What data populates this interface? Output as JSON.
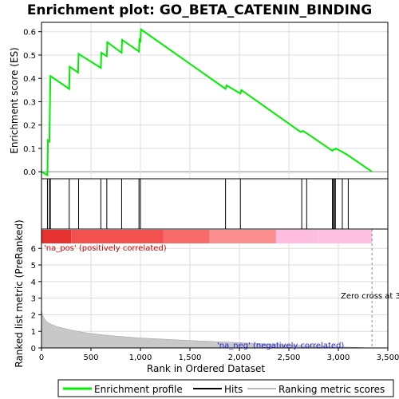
{
  "title": "Enrichment plot: GO_BETA_CATENIN_BINDING",
  "top_panel": {
    "ylabel": "Enrichment score (ES)",
    "yticks": [
      "0.0",
      "0.1",
      "0.2",
      "0.3",
      "0.4",
      "0.5",
      "0.6"
    ]
  },
  "bottom_panel": {
    "ylabel": "Ranked list metric (PreRanked)",
    "yticks": [
      "0",
      "1",
      "2",
      "3",
      "4",
      "5",
      "6"
    ],
    "xlabel": "Rank in Ordered Dataset",
    "xticks": [
      "0",
      "500",
      "1,000",
      "1,500",
      "2,000",
      "2,500",
      "3,000",
      "3,500"
    ],
    "pos_label": "'na_pos' (positively correlated)",
    "neg_label": "'na_neg' (negatively correlated)",
    "zero_cross_label": "Zero cross at 3"
  },
  "legend": {
    "items": [
      {
        "label": "Enrichment profile",
        "color": "#00ee00"
      },
      {
        "label": "Hits",
        "color": "#000000"
      },
      {
        "label": "Ranking metric scores",
        "color": "#bbbbbb"
      }
    ]
  },
  "colors": {
    "es_line": "#00ee00",
    "hits": "#000000",
    "metric_fill": "#c8c8c8",
    "band_red": "#e8302f",
    "band_pink": "#ffb0dd"
  },
  "chart_data": [
    {
      "type": "line",
      "name": "enrichment-profile",
      "xlim": [
        0,
        3500
      ],
      "ylim": [
        -0.03,
        0.64
      ],
      "grid": true,
      "x": [
        0,
        60,
        65,
        80,
        85,
        90,
        280,
        285,
        370,
        375,
        600,
        605,
        660,
        665,
        810,
        815,
        985,
        990,
        1000,
        1005,
        1860,
        1870,
        2010,
        2020,
        2620,
        2640,
        2680,
        2940,
        2950,
        2965,
        2975,
        3040,
        3100,
        3340
      ],
      "y": [
        0.0,
        -0.015,
        0.135,
        0.13,
        0.27,
        0.41,
        0.355,
        0.45,
        0.425,
        0.505,
        0.445,
        0.51,
        0.495,
        0.555,
        0.51,
        0.565,
        0.515,
        0.565,
        0.56,
        0.61,
        0.355,
        0.37,
        0.335,
        0.35,
        0.17,
        0.175,
        0.165,
        0.09,
        0.095,
        0.095,
        0.1,
        0.085,
        0.07,
        0.0
      ]
    },
    {
      "type": "bar",
      "name": "hits",
      "x": [
        60,
        80,
        90,
        280,
        375,
        600,
        660,
        810,
        985,
        1000,
        1860,
        2010,
        2630,
        2680,
        2940,
        2950,
        2960,
        2970,
        3040,
        3100
      ]
    },
    {
      "type": "area",
      "name": "ranked-list-metric",
      "xlim": [
        0,
        3500
      ],
      "ylim": [
        0,
        6.3
      ],
      "x": [
        0,
        10,
        30,
        60,
        100,
        150,
        200,
        300,
        400,
        500,
        700,
        1000,
        1500,
        2000,
        2500,
        2900,
        3200,
        3340
      ],
      "y": [
        2.3,
        2.0,
        1.75,
        1.55,
        1.42,
        1.3,
        1.22,
        1.08,
        0.96,
        0.87,
        0.74,
        0.6,
        0.45,
        0.32,
        0.18,
        0.08,
        0.03,
        0.0
      ]
    }
  ]
}
